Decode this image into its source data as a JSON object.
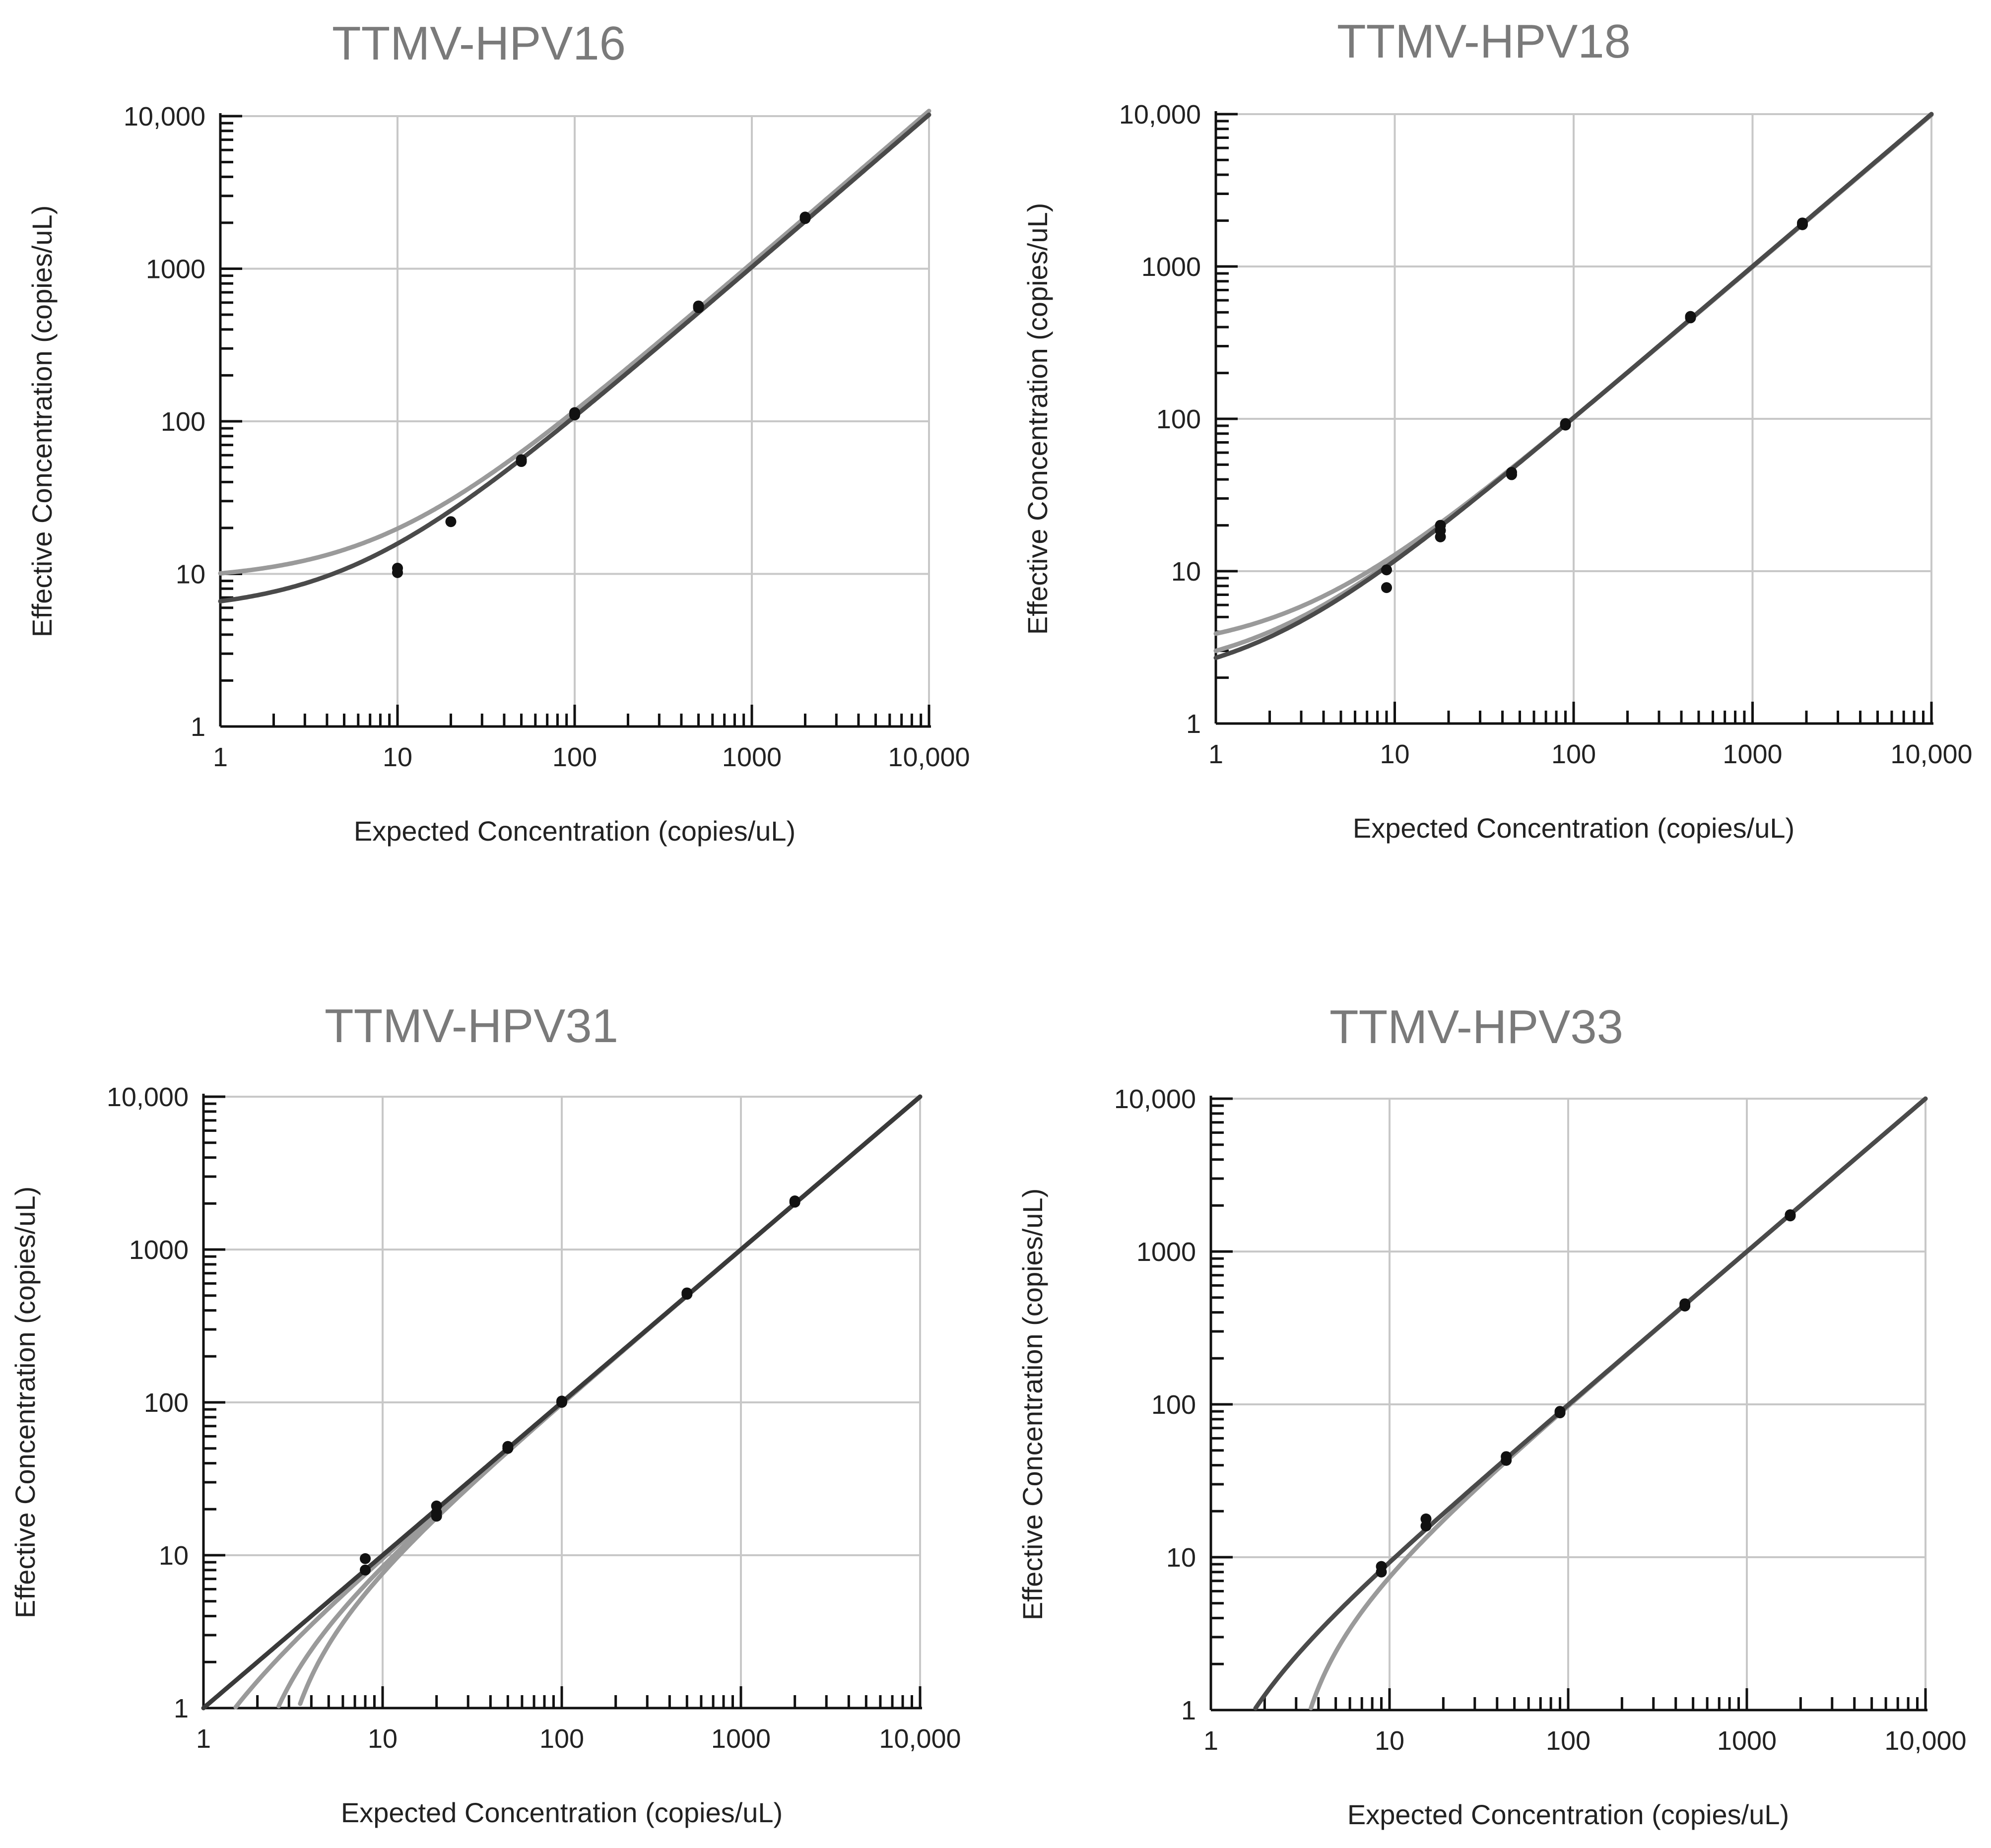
{
  "chart_data": [
    {
      "type": "scatter",
      "title": "TTMV-HPV16",
      "xlabel": "Expected Concentration (copies/uL)",
      "ylabel": "Effective Concentration (copies/uL)",
      "xscale": "log",
      "yscale": "log",
      "xlim": [
        1,
        10000
      ],
      "ylim": [
        1,
        10000
      ],
      "x_ticks": [
        "1",
        "10",
        "100",
        "1000",
        "10,000"
      ],
      "y_ticks": [
        "1",
        "10",
        "100",
        "1000",
        "10,000"
      ],
      "grid": true,
      "points": [
        {
          "x": 10,
          "y": 10.2
        },
        {
          "x": 10,
          "y": 10.9
        },
        {
          "x": 20,
          "y": 22
        },
        {
          "x": 50,
          "y": 54.5
        },
        {
          "x": 50,
          "y": 56
        },
        {
          "x": 100,
          "y": 110
        },
        {
          "x": 100,
          "y": 114
        },
        {
          "x": 500,
          "y": 555
        },
        {
          "x": 500,
          "y": 570
        },
        {
          "x": 2000,
          "y": 2130
        },
        {
          "x": 2000,
          "y": 2180
        }
      ],
      "curves": [
        {
          "a": 9,
          "b": 1.08,
          "color": "#9a9a9a"
        },
        {
          "a": 5.6,
          "b": 1.02,
          "color": "#4a4a4a"
        }
      ]
    },
    {
      "type": "scatter",
      "title": "TTMV-HPV18",
      "xlabel": "Expected Concentration (copies/uL)",
      "ylabel": "Effective Concentration (copies/uL)",
      "xscale": "log",
      "yscale": "log",
      "xlim": [
        1,
        10000
      ],
      "ylim": [
        1,
        10000
      ],
      "x_ticks": [
        "1",
        "10",
        "100",
        "1000",
        "10,000"
      ],
      "y_ticks": [
        "1",
        "10",
        "100",
        "1000",
        "10,000"
      ],
      "grid": true,
      "points": [
        {
          "x": 9,
          "y": 7.8
        },
        {
          "x": 9,
          "y": 10.2
        },
        {
          "x": 18,
          "y": 16.8
        },
        {
          "x": 18,
          "y": 18.5
        },
        {
          "x": 18,
          "y": 20
        },
        {
          "x": 45,
          "y": 43
        },
        {
          "x": 45,
          "y": 44.5
        },
        {
          "x": 90,
          "y": 91
        },
        {
          "x": 90,
          "y": 93
        },
        {
          "x": 450,
          "y": 460
        },
        {
          "x": 450,
          "y": 470
        },
        {
          "x": 1900,
          "y": 1880
        },
        {
          "x": 1900,
          "y": 1930
        }
      ],
      "curves": [
        {
          "a": 2.9,
          "b": 0.99,
          "color": "#9a9a9a"
        },
        {
          "a": 2.0,
          "b": 1.0,
          "color": "#9a9a9a"
        },
        {
          "a": 1.7,
          "b": 1.0,
          "color": "#4a4a4a"
        }
      ]
    },
    {
      "type": "scatter",
      "title": "TTMV-HPV31",
      "xlabel": "Expected Concentration (copies/uL)",
      "ylabel": "Effective Concentration (copies/uL)",
      "xscale": "log",
      "yscale": "log",
      "xlim": [
        1,
        10000
      ],
      "ylim": [
        1,
        10000
      ],
      "x_ticks": [
        "1",
        "10",
        "100",
        "1000",
        "10,000"
      ],
      "y_ticks": [
        "1",
        "10",
        "100",
        "1000",
        "10,000"
      ],
      "grid": true,
      "points": [
        {
          "x": 8,
          "y": 8
        },
        {
          "x": 8,
          "y": 9.5
        },
        {
          "x": 20,
          "y": 18
        },
        {
          "x": 20,
          "y": 19
        },
        {
          "x": 20,
          "y": 21
        },
        {
          "x": 50,
          "y": 50
        },
        {
          "x": 50,
          "y": 51.5
        },
        {
          "x": 100,
          "y": 100
        },
        {
          "x": 100,
          "y": 102
        },
        {
          "x": 500,
          "y": 510
        },
        {
          "x": 500,
          "y": 520
        },
        {
          "x": 2000,
          "y": 2040
        },
        {
          "x": 2000,
          "y": 2080
        }
      ],
      "curves": [
        {
          "a": -0.5,
          "b": 1.0,
          "color": "#9a9a9a"
        },
        {
          "a": -1.6,
          "b": 1.0,
          "color": "#9a9a9a"
        },
        {
          "a": -2.4,
          "b": 1.0,
          "color": "#9a9a9a"
        },
        {
          "a": 0,
          "b": 1.0,
          "color": "#3a3a3a"
        }
      ]
    },
    {
      "type": "scatter",
      "title": "TTMV-HPV33",
      "xlabel": "Expected Concentration (copies/uL)",
      "ylabel": "Effective Concentration (copies/uL)",
      "xscale": "log",
      "yscale": "log",
      "xlim": [
        1,
        10000
      ],
      "ylim": [
        1,
        10000
      ],
      "x_ticks": [
        "1",
        "10",
        "100",
        "1000",
        "10,000"
      ],
      "y_ticks": [
        "1",
        "10",
        "100",
        "1000",
        "10,000"
      ],
      "grid": true,
      "points": [
        {
          "x": 9,
          "y": 8
        },
        {
          "x": 9,
          "y": 8.7
        },
        {
          "x": 16,
          "y": 16
        },
        {
          "x": 16,
          "y": 17.8
        },
        {
          "x": 45,
          "y": 43
        },
        {
          "x": 45,
          "y": 45.5
        },
        {
          "x": 90,
          "y": 88
        },
        {
          "x": 90,
          "y": 90
        },
        {
          "x": 450,
          "y": 440
        },
        {
          "x": 450,
          "y": 455
        },
        {
          "x": 1750,
          "y": 1710
        },
        {
          "x": 1750,
          "y": 1740
        }
      ],
      "curves": [
        {
          "a": -2.6,
          "b": 1.0,
          "color": "#9a9a9a"
        },
        {
          "a": -0.75,
          "b": 1.0,
          "color": "#4a4a4a"
        }
      ]
    }
  ]
}
